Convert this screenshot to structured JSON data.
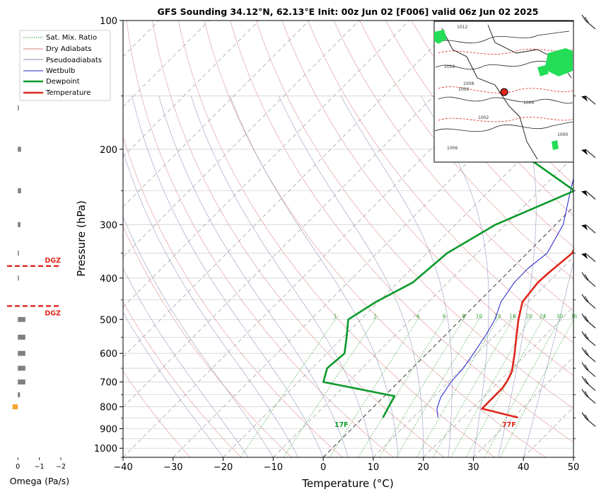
{
  "chart_data": {
    "type": "line",
    "chart_kind": "skew-T log-P sounding",
    "title": "GFS Sounding 34.12°N, 62.13°E Init: 00z Jun 02 [F006] valid 06z Jun 02 2025",
    "xlabel": "Temperature (°C)",
    "ylabel": "Pressure (hPa)",
    "xlim": [
      -40,
      50
    ],
    "ylim": [
      1050,
      100
    ],
    "y_scale": "log",
    "grid": true,
    "legend_position": "top-left (outside plot)",
    "x_ticks": [
      "−40",
      "−30",
      "−20",
      "−10",
      "0",
      "10",
      "20",
      "30",
      "40",
      "50"
    ],
    "y_ticks": [
      "100",
      "200",
      "300",
      "400",
      "500",
      "600",
      "700",
      "800",
      "900",
      "1000"
    ],
    "legend": [
      {
        "label": "Sat. Mix. Ratio",
        "color": "#2ca02c",
        "style": "dotted"
      },
      {
        "label": "Dry Adiabats",
        "color": "#d98080",
        "style": "solid"
      },
      {
        "label": "Pseudoadiabats",
        "color": "#8888bb",
        "style": "solid"
      },
      {
        "label": "Wetbulb",
        "color": "#1f1fcc",
        "style": "solid"
      },
      {
        "label": "Dewpoint",
        "color": "#0b9a2a",
        "style": "thick"
      },
      {
        "label": "Temperature",
        "color": "#e0261c",
        "style": "thick"
      }
    ],
    "series": [
      {
        "name": "Temperature",
        "color": "#e0261c",
        "points": [
          [
            848,
            31
          ],
          [
            808,
            22
          ],
          [
            760,
            22
          ],
          [
            725,
            22
          ],
          [
            695,
            21.5
          ],
          [
            660,
            20.5
          ],
          [
            600,
            17.5
          ],
          [
            540,
            14
          ],
          [
            500,
            11.5
          ],
          [
            455,
            8.8
          ],
          [
            410,
            8
          ],
          [
            390,
            8.2
          ],
          [
            350,
            9
          ],
          [
            300,
            6
          ],
          [
            250,
            -0.8
          ],
          [
            200,
            -7.5
          ],
          [
            160,
            -12.5
          ],
          [
            100,
            -30
          ]
        ]
      },
      {
        "name": "Wetbulb",
        "color": "#1f1fcc",
        "points": [
          [
            848,
            15
          ],
          [
            808,
            13
          ],
          [
            760,
            11.5
          ],
          [
            700,
            10.5
          ],
          [
            650,
            10.2
          ],
          [
            600,
            9.3
          ],
          [
            540,
            8
          ],
          [
            500,
            6.8
          ],
          [
            455,
            4.5
          ],
          [
            410,
            3.3
          ],
          [
            380,
            3.2
          ],
          [
            350,
            4
          ],
          [
            300,
            1.5
          ],
          [
            250,
            -3.8
          ],
          [
            200,
            -10
          ],
          [
            160,
            -15
          ],
          [
            100,
            -30
          ]
        ]
      },
      {
        "name": "Dewpoint",
        "color": "#0b9a2a",
        "points": [
          [
            848,
            4
          ],
          [
            800,
            3
          ],
          [
            755,
            2
          ],
          [
            700,
            -15
          ],
          [
            650,
            -17
          ],
          [
            600,
            -16.5
          ],
          [
            555,
            -19
          ],
          [
            500,
            -22.5
          ],
          [
            455,
            -20.5
          ],
          [
            410,
            -17
          ],
          [
            350,
            -16
          ],
          [
            300,
            -12
          ],
          [
            250,
            -3
          ],
          [
            200,
            -23
          ],
          [
            160,
            -20
          ],
          [
            100,
            -36
          ]
        ]
      }
    ],
    "surface_labels": [
      {
        "text": "17F",
        "series": "Dewpoint",
        "t": -3,
        "p": 878,
        "color": "#0b9a2a"
      },
      {
        "text": "77F",
        "series": "Temperature",
        "t": 30.5,
        "p": 878,
        "color": "#e0261c"
      }
    ],
    "mixing_ratio_labels": [
      "1",
      "2",
      "4",
      "6",
      "8",
      "10",
      "13",
      "16",
      "20",
      "24",
      "30",
      "36"
    ],
    "mixing_ratio_values": [
      1,
      2,
      4,
      6,
      8,
      10,
      13,
      16,
      20,
      24,
      30,
      36
    ],
    "dgz_labels": [
      "DGZ",
      "DGZ"
    ],
    "dgz_pressures": [
      375,
      465
    ],
    "omega": {
      "xlabel": "Omega (Pa/s)",
      "ticks": [
        "0",
        "−1",
        "−2"
      ],
      "xlim": [
        0.5,
        -2
      ],
      "levels": [
        {
          "p": 160,
          "v": -0.05
        },
        {
          "p": 200,
          "v": -0.15
        },
        {
          "p": 250,
          "v": -0.15
        },
        {
          "p": 300,
          "v": -0.12
        },
        {
          "p": 350,
          "v": -0.05
        },
        {
          "p": 400,
          "v": -0.05
        },
        {
          "p": 500,
          "v": -0.35
        },
        {
          "p": 550,
          "v": -0.35
        },
        {
          "p": 600,
          "v": -0.35
        },
        {
          "p": 650,
          "v": -0.35
        },
        {
          "p": 700,
          "v": -0.35
        },
        {
          "p": 750,
          "v": -0.1
        },
        {
          "p": 800,
          "v": 0.25
        }
      ],
      "colors": {
        "negative": "#808080",
        "positive": "#f5a534"
      }
    },
    "wind_barbs": [
      {
        "p": 100,
        "symbol": "feathers"
      },
      {
        "p": 150,
        "symbol": "pennant"
      },
      {
        "p": 200,
        "symbol": "pennant"
      },
      {
        "p": 250,
        "symbol": "pennant"
      },
      {
        "p": 300,
        "symbol": "pennant"
      },
      {
        "p": 350,
        "symbol": "pennant"
      },
      {
        "p": 400,
        "symbol": "feathers"
      },
      {
        "p": 450,
        "symbol": "feathers"
      },
      {
        "p": 500,
        "symbol": "feathers"
      },
      {
        "p": 550,
        "symbol": "feathers"
      },
      {
        "p": 600,
        "symbol": "feathers"
      },
      {
        "p": 650,
        "symbol": "feathers"
      },
      {
        "p": 700,
        "symbol": "feathers"
      },
      {
        "p": 750,
        "symbol": "feathers"
      },
      {
        "p": 850,
        "symbol": "feathers"
      }
    ],
    "inset_map": {
      "description": "surface pressure / precipitation map of the region with location marker",
      "isobar_labels": [
        "1012",
        "1010",
        "1008",
        "1006",
        "1004",
        "1002",
        "1000",
        "1006"
      ],
      "marker_color": "#e0261c",
      "precip_color": "#22dd55"
    }
  },
  "colors": {
    "temperature": "#e0261c",
    "dewpoint": "#0b9a2a",
    "wetbulb": "#1f1fcc",
    "dry_adiabat": "#d98080",
    "pseudoadiabat": "#8888bb",
    "mixing_ratio": "#2ca02c",
    "isotherm": "#999999",
    "dgz": "#e0261c"
  }
}
